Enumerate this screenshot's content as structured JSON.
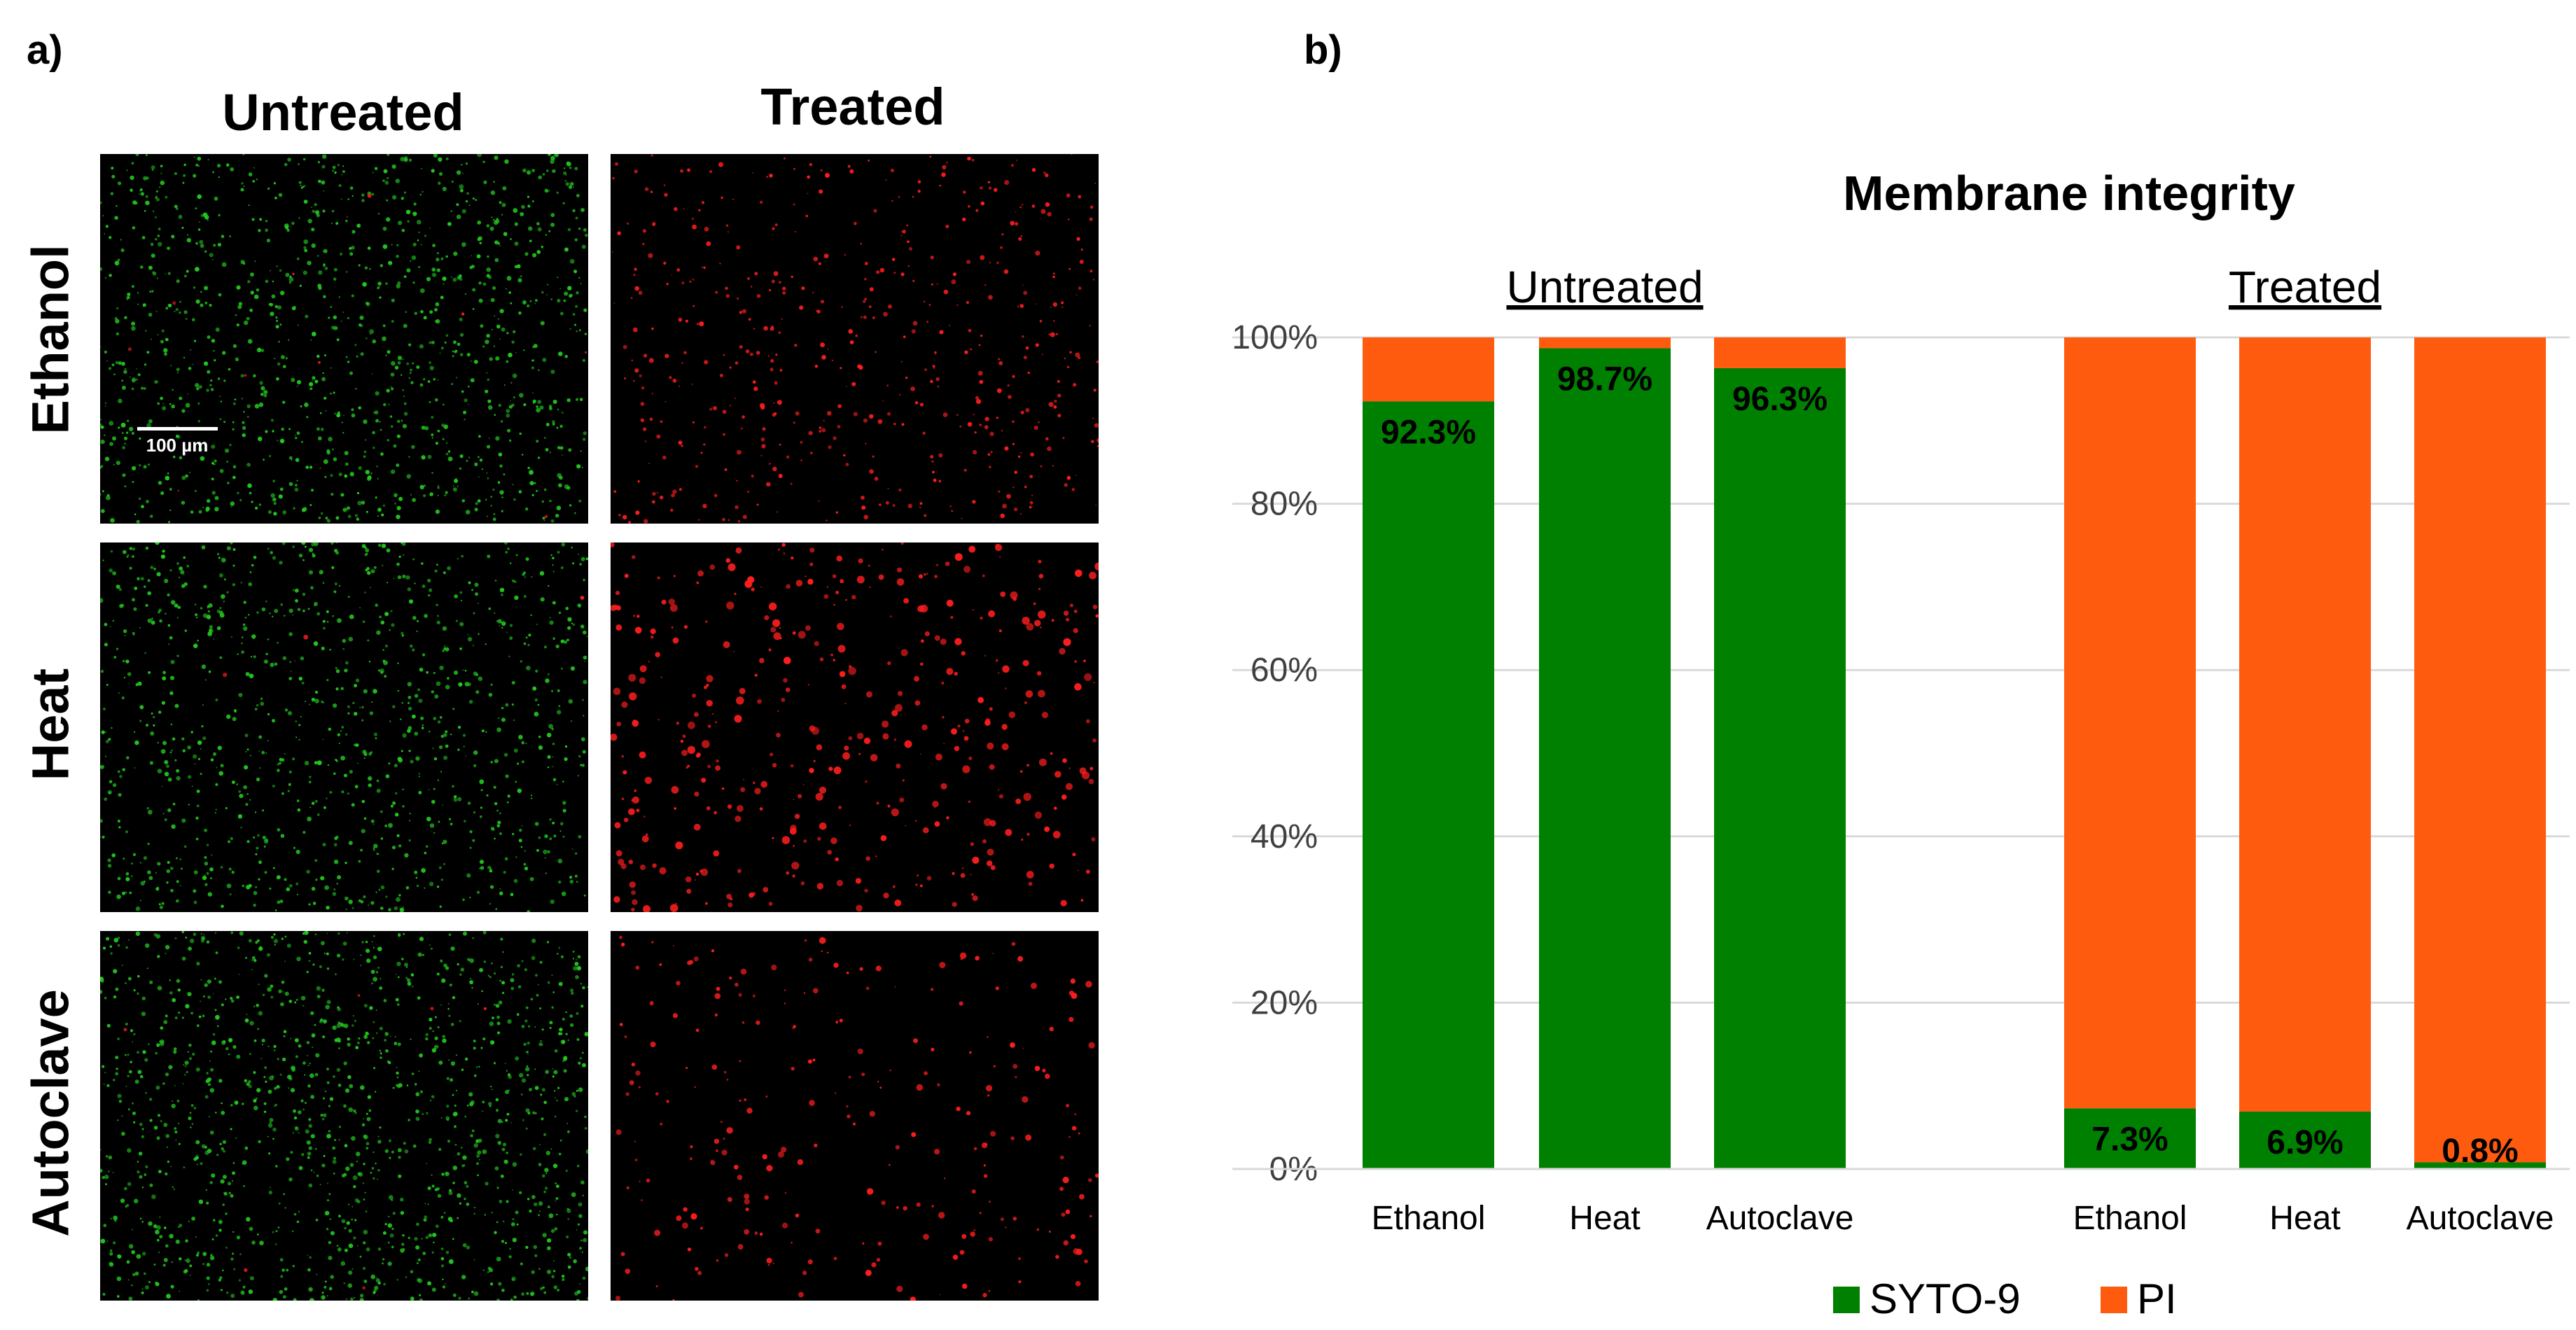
{
  "panel_a": {
    "label": "a)",
    "columns": [
      "Untreated",
      "Treated"
    ],
    "rows": [
      "Ethanol",
      "Heat",
      "Autoclave"
    ],
    "scale_bar": "100 µm",
    "colors": {
      "live": "#22c81e",
      "dead": "#ff1d1d"
    }
  },
  "panel_b": {
    "label": "b)"
  },
  "chart_data": {
    "type": "bar",
    "stacked": true,
    "title": "Membrane integrity",
    "groups": [
      {
        "label": "Untreated",
        "categories": [
          "Ethanol",
          "Heat",
          "Autoclave"
        ]
      },
      {
        "label": "Treated",
        "categories": [
          "Ethanol",
          "Heat",
          "Autoclave"
        ]
      }
    ],
    "categories": [
      "Ethanol",
      "Heat",
      "Autoclave",
      "Ethanol",
      "Heat",
      "Autoclave"
    ],
    "series": [
      {
        "name": "SYTO-9",
        "color": "#008000",
        "values": [
          92.3,
          98.7,
          96.3,
          7.3,
          6.9,
          0.8
        ]
      },
      {
        "name": "PI",
        "color": "#ff5b0f",
        "values": [
          7.7,
          1.3,
          3.7,
          92.7,
          93.1,
          99.2
        ]
      }
    ],
    "data_labels": [
      "92.3%",
      "98.7%",
      "96.3%",
      "7.3%",
      "6.9%",
      "0.8%"
    ],
    "yticks": [
      "0%",
      "20%",
      "40%",
      "60%",
      "80%",
      "100%"
    ],
    "ylim": [
      0,
      100
    ],
    "grid": true,
    "legend": "bottom"
  }
}
